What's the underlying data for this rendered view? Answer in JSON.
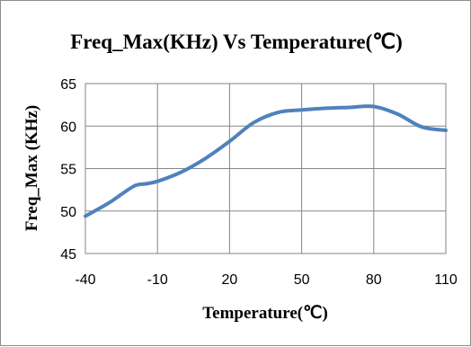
{
  "chart_data": {
    "type": "line",
    "title": "Freq_Max(KHz) Vs Temperature(℃)",
    "xlabel": "Temperature(℃)",
    "ylabel": "Freq_Max (KHz)",
    "x_ticks": [
      "-40",
      "-10",
      "20",
      "50",
      "80",
      "110"
    ],
    "y_ticks": [
      "45",
      "50",
      "55",
      "60",
      "65"
    ],
    "xlim": [
      -40,
      110
    ],
    "ylim": [
      45,
      65
    ],
    "grid": true,
    "series": [
      {
        "color": "#4f81bd",
        "x": [
          -40,
          -30,
          -20,
          -15,
          -10,
          0,
          10,
          20,
          30,
          40,
          50,
          60,
          70,
          80,
          90,
          100,
          110
        ],
        "y": [
          49.4,
          51.0,
          52.9,
          53.2,
          53.5,
          54.6,
          56.2,
          58.2,
          60.4,
          61.6,
          61.9,
          62.1,
          62.2,
          62.3,
          61.4,
          59.9,
          59.5
        ]
      }
    ]
  }
}
